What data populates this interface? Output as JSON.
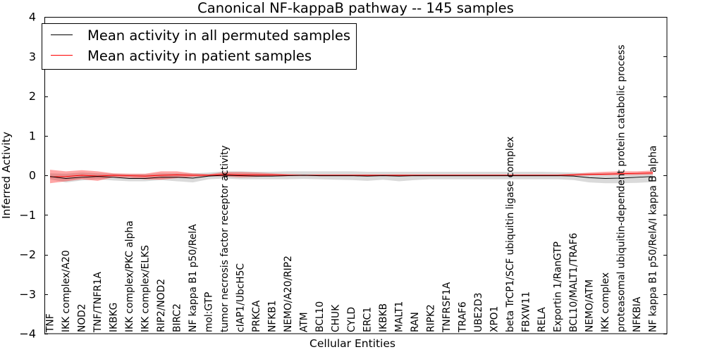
{
  "chart_data": {
    "type": "line",
    "title": "Canonical NF-kappaB pathway -- 145 samples",
    "xlabel": "Cellular Entities",
    "ylabel": "Inferred Activity",
    "ylim": [
      -4,
      4
    ],
    "yticks": [
      -4,
      -3,
      -2,
      -1,
      0,
      1,
      2,
      3,
      4
    ],
    "grid": false,
    "legend": "top-left",
    "categories": [
      "TNF",
      "IKK complex/A20",
      "NOD2",
      "TNF/TNFR1A",
      "IKBKG",
      "IKK complex/PKC alpha",
      "IKK complex/ELKS",
      "RIP2/NOD2",
      "BIRC2",
      "NF kappa B1 p50/RelA",
      "mol:GTP",
      "tumor necrosis factor receptor activity",
      "cIAP1/UbcH5C",
      "PRKCA",
      "NFKB1",
      "NEMO/A20/RIP2",
      "ATM",
      "BCL10",
      "CHUK",
      "CYLD",
      "ERC1",
      "IKBKB",
      "MALT1",
      "RAN",
      "RIPK2",
      "TNFRSF1A",
      "TRAF6",
      "UBE2D3",
      "XPO1",
      "beta TrCP1/SCF ubiquitin ligase complex",
      "FBXW11",
      "RELA",
      "Exportin 1/RanGTP",
      "BCL10/MALT1/TRAF6",
      "NEMO/ATM",
      "IKK complex",
      "proteasomal ubiquitin-dependent protein catabolic process",
      "NFKBIA",
      "NF kappa B1 p50/RelA/I kappa B alpha"
    ],
    "series": [
      {
        "name": "Mean activity in all permuted samples",
        "color": "#000000",
        "band_color": "#bbbbbb",
        "values": [
          -0.03,
          -0.08,
          -0.05,
          -0.03,
          -0.05,
          -0.08,
          -0.08,
          -0.05,
          -0.05,
          -0.07,
          -0.02,
          0.0,
          -0.01,
          -0.02,
          -0.02,
          -0.01,
          0.0,
          -0.01,
          -0.01,
          -0.01,
          -0.02,
          -0.01,
          -0.02,
          -0.01,
          -0.01,
          -0.01,
          -0.01,
          -0.01,
          -0.01,
          -0.01,
          -0.01,
          -0.01,
          -0.01,
          -0.02,
          -0.06,
          -0.08,
          -0.07,
          -0.05,
          -0.03
        ],
        "band_lower": [
          -0.1,
          -0.18,
          -0.13,
          -0.1,
          -0.13,
          -0.15,
          -0.15,
          -0.12,
          -0.15,
          -0.18,
          -0.1,
          -0.08,
          -0.1,
          -0.1,
          -0.1,
          -0.1,
          -0.09,
          -0.1,
          -0.11,
          -0.12,
          -0.14,
          -0.11,
          -0.15,
          -0.12,
          -0.1,
          -0.1,
          -0.1,
          -0.1,
          -0.1,
          -0.1,
          -0.1,
          -0.1,
          -0.1,
          -0.12,
          -0.18,
          -0.2,
          -0.2,
          -0.19,
          -0.17
        ],
        "band_upper": [
          0.05,
          0.04,
          0.07,
          0.05,
          0.04,
          0.03,
          0.03,
          0.05,
          0.05,
          0.05,
          0.07,
          0.1,
          0.1,
          0.09,
          0.09,
          0.1,
          0.1,
          0.1,
          0.1,
          0.1,
          0.09,
          0.09,
          0.09,
          0.09,
          0.09,
          0.09,
          0.09,
          0.09,
          0.09,
          0.09,
          0.09,
          0.09,
          0.08,
          0.07,
          0.05,
          0.05,
          0.05,
          0.05,
          0.05
        ]
      },
      {
        "name": "Mean activity in patient samples",
        "color": "#ff0000",
        "band_color": "#ff0000",
        "values": [
          -0.04,
          -0.03,
          0.0,
          -0.02,
          0.0,
          -0.01,
          -0.02,
          0.0,
          0.01,
          0.0,
          0.0,
          0.02,
          0.01,
          0.01,
          0.01,
          0.0,
          0.0,
          0.0,
          0.0,
          0.0,
          0.0,
          0.0,
          0.0,
          0.0,
          0.0,
          0.0,
          0.0,
          0.0,
          0.0,
          0.0,
          0.0,
          0.0,
          0.0,
          0.01,
          0.02,
          0.03,
          0.04,
          0.05,
          0.06
        ],
        "band_lower": [
          -0.2,
          -0.15,
          -0.1,
          -0.14,
          -0.05,
          -0.06,
          -0.1,
          -0.11,
          -0.07,
          -0.04,
          -0.02,
          -0.03,
          -0.05,
          -0.04,
          -0.03,
          -0.02,
          -0.02,
          -0.02,
          -0.02,
          -0.02,
          -0.02,
          -0.02,
          -0.02,
          -0.02,
          -0.02,
          -0.02,
          -0.02,
          -0.02,
          -0.02,
          -0.02,
          -0.02,
          -0.02,
          -0.02,
          -0.01,
          0.0,
          0.0,
          0.01,
          0.01,
          0.02
        ],
        "band_upper": [
          0.14,
          0.1,
          0.13,
          0.1,
          0.05,
          0.04,
          0.04,
          0.1,
          0.1,
          0.05,
          0.03,
          0.08,
          0.08,
          0.07,
          0.05,
          0.03,
          0.02,
          0.02,
          0.02,
          0.02,
          0.02,
          0.02,
          0.02,
          0.02,
          0.02,
          0.02,
          0.02,
          0.02,
          0.02,
          0.02,
          0.02,
          0.02,
          0.02,
          0.04,
          0.07,
          0.09,
          0.1,
          0.1,
          0.12
        ]
      }
    ]
  }
}
